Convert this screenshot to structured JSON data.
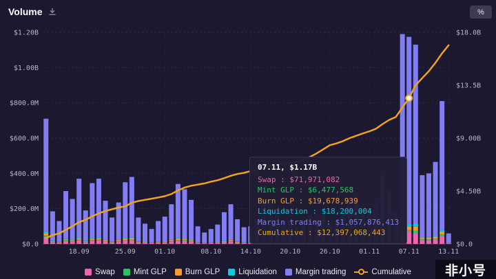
{
  "header": {
    "title": "Volume",
    "percent_button": "%"
  },
  "watermark": {
    "text": "非小号"
  },
  "tooltip": {
    "title": "07.11, $1.17B",
    "rows": [
      {
        "label": "Swap",
        "value": "$71,971,082",
        "color": "#ee64b0"
      },
      {
        "label": "Mint GLP",
        "value": "$6,477,568",
        "color": "#22c761"
      },
      {
        "label": "Burn GLP",
        "value": "$19,678,939",
        "color": "#f89b2d"
      },
      {
        "label": "Liquidation",
        "value": "$18,200,004",
        "color": "#0fc9e0"
      },
      {
        "label": "Margin trading",
        "value": "$1,057,876,413",
        "color": "#827df2"
      },
      {
        "label": "Cumulative",
        "value": "$12,397,068,443",
        "color": "#f0a41c"
      }
    ]
  },
  "legend": [
    {
      "slug": "swap",
      "label": "Swap",
      "type": "square",
      "color": "#ee64b0"
    },
    {
      "slug": "mint-glp",
      "label": "Mint GLP",
      "type": "square",
      "color": "#22c761"
    },
    {
      "slug": "burn-glp",
      "label": "Burn GLP",
      "type": "square",
      "color": "#f89b2d"
    },
    {
      "slug": "liquidation",
      "label": "Liquidation",
      "type": "square",
      "color": "#0fc9e0"
    },
    {
      "slug": "margin-trading",
      "label": "Margin trading",
      "type": "square",
      "color": "#827df2"
    },
    {
      "slug": "cumulative",
      "label": "Cumulative",
      "type": "line",
      "color": "#f0a41c"
    }
  ],
  "chart_data": {
    "type": "bar",
    "subtype": "stacked-bar-with-cumulative-line",
    "title": "Volume",
    "grid": true,
    "left_axis": {
      "ticks": [
        "$0.0",
        "$200.0M",
        "$400.0M",
        "$600.0M",
        "$800.0M",
        "$1.00B",
        "$1.20B"
      ],
      "values_musd": [
        0,
        200,
        400,
        600,
        800,
        1000,
        1200
      ],
      "max_musd": 1200
    },
    "right_axis": {
      "ticks": [
        "$0.0",
        "$4.50B",
        "$9.00B",
        "$13.5B",
        "$18.0B"
      ],
      "values_busd": [
        0,
        4.5,
        9,
        13.5,
        18
      ],
      "max_busd": 18
    },
    "x_ticks": [
      {
        "label": "18.09",
        "i": 5
      },
      {
        "label": "25.09",
        "i": 12
      },
      {
        "label": "01.10",
        "i": 18
      },
      {
        "label": "08.10",
        "i": 25
      },
      {
        "label": "14.10",
        "i": 31
      },
      {
        "label": "20.10",
        "i": 37
      },
      {
        "label": "26.10",
        "i": 43
      },
      {
        "label": "01.11",
        "i": 49
      },
      {
        "label": "07.11",
        "i": 55
      },
      {
        "label": "13.11",
        "i": 61
      }
    ],
    "days": 62,
    "totals_musd": [
      710,
      185,
      130,
      300,
      255,
      370,
      190,
      345,
      370,
      245,
      150,
      235,
      350,
      380,
      150,
      115,
      85,
      130,
      155,
      225,
      340,
      310,
      250,
      100,
      65,
      85,
      110,
      180,
      225,
      140,
      95,
      100,
      130,
      245,
      225,
      210,
      130,
      130,
      95,
      120,
      165,
      140,
      160,
      120,
      110,
      175,
      260,
      265,
      205,
      200,
      235,
      390,
      300,
      180,
      1190,
      1170,
      1130,
      390,
      400,
      465,
      810,
      60
    ],
    "cumulative_busd": [
      0.5,
      0.75,
      0.9,
      1.2,
      1.5,
      1.86,
      2.05,
      2.35,
      2.6,
      2.8,
      2.95,
      3.1,
      3.2,
      3.5,
      3.65,
      3.75,
      3.85,
      3.95,
      4.06,
      4.25,
      4.55,
      4.8,
      4.95,
      5.05,
      5.15,
      5.3,
      5.42,
      5.6,
      5.8,
      5.95,
      6.05,
      6.2,
      6.3,
      6.5,
      6.65,
      6.75,
      6.82,
      6.9,
      7.0,
      7.15,
      7.4,
      7.7,
      8.05,
      8.4,
      8.55,
      8.75,
      9.0,
      9.2,
      9.4,
      9.58,
      9.8,
      10.2,
      10.55,
      10.8,
      11.6,
      12.397,
      13.5,
      14.1,
      14.7,
      15.4,
      16.2,
      16.9
    ],
    "stack_order": [
      "swap",
      "mint",
      "burn",
      "liquidation",
      "margin"
    ],
    "stack_fractions": {
      "swap": 0.055,
      "mint": 0.012,
      "burn": 0.02,
      "liquidation": 0.013
    },
    "highlight": {
      "day_index": 55,
      "label": "07.11",
      "total_label": "$1.17B",
      "components_musd": {
        "swap": 71.97,
        "mint": 6.48,
        "burn": 19.68,
        "liquidation": 18.2,
        "margin": 1057.88
      },
      "cumulative_busd": 12.397
    },
    "series_colors": {
      "swap": "#ee64b0",
      "mint": "#22c761",
      "burn": "#f89b2d",
      "liquidation": "#0fc9e0",
      "margin": "#827df2",
      "cumulative": "#f0a41c"
    },
    "axis_text_color": "#b9b5cc"
  }
}
